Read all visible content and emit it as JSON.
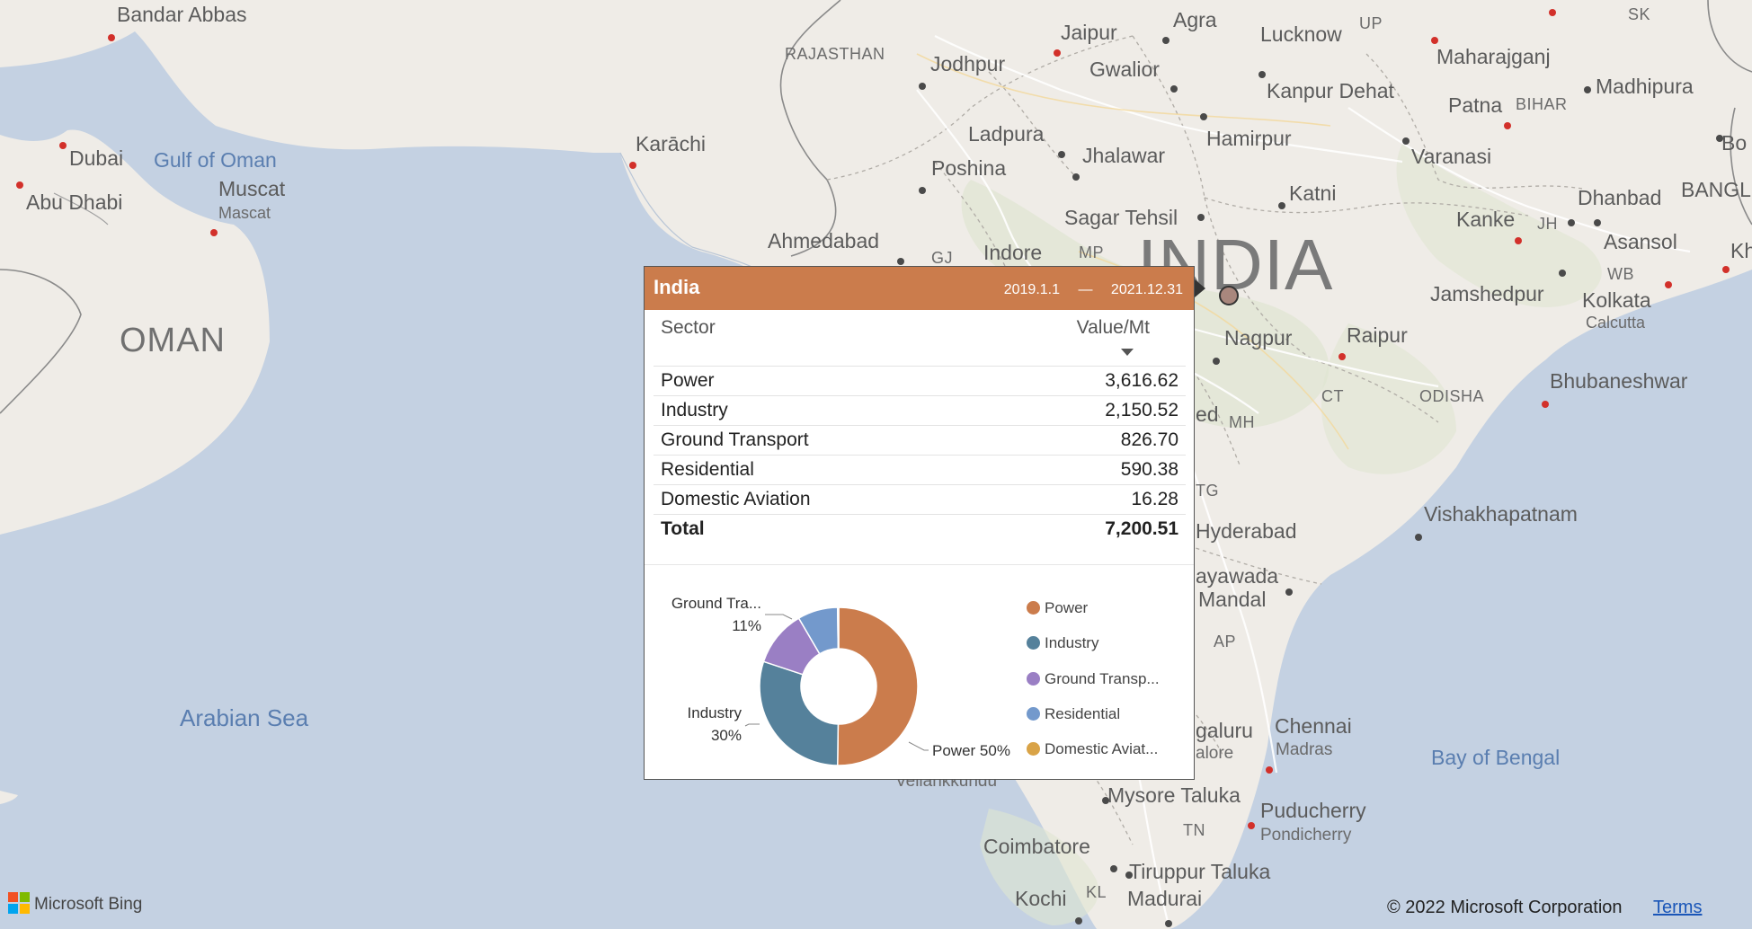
{
  "map": {
    "labels": {
      "bandar_abbas": "Bandar Abbas",
      "dubai": "Dubai",
      "gulf_of_oman": "Gulf of Oman",
      "muscat": "Muscat",
      "mascat": "Mascat",
      "abu_dhabi": "Abu Dhabi",
      "oman": "OMAN",
      "karachi": "Karāchi",
      "arabian_sea": "Arabian Sea",
      "rajasthan": "RAJASTHAN",
      "jaipur": "Jaipur",
      "agra": "Agra",
      "lucknow": "Lucknow",
      "up": "UP",
      "sk": "SK",
      "jodhpur": "Jodhpur",
      "gwalior": "Gwalior",
      "maharajganj": "Maharajganj",
      "kanpur_dehat": "Kanpur Dehat",
      "madhipura": "Madhipura",
      "patna": "Patna",
      "bihar": "BIHAR",
      "ladpura": "Ladpura",
      "hamirpur": "Hamirpur",
      "jhalawar": "Jhalawar",
      "poshina": "Poshina",
      "varanasi": "Varanasi",
      "bo": "Bo",
      "katni": "Katni",
      "dhanbad": "Dhanbad",
      "bangl": "BANGL",
      "ahmedabad": "Ahmedabad",
      "sagar_tehsil": "Sagar Tehsil",
      "kanke": "Kanke",
      "jh": "JH",
      "asansol": "Asansol",
      "kh": "Kh",
      "gj": "GJ",
      "indore": "Indore",
      "mp": "MP",
      "india": "INDIA",
      "wb": "WB",
      "jamshedpur": "Jamshedpur",
      "kolkata": "Kolkata",
      "calcutta": "Calcutta",
      "nagpur": "Nagpur",
      "raipur": "Raipur",
      "ct": "CT",
      "odisha": "ODISHA",
      "bhubaneshwar": "Bhubaneshwar",
      "ed": "ed",
      "mh": "MH",
      "tg": "TG",
      "hyderabad": "Hyderabad",
      "vishakhapatnam": "Vishakhapatnam",
      "ayawada": "ayawada",
      "mandal": "Mandal",
      "ap": "AP",
      "chennai": "Chennai",
      "madras": "Madras",
      "galuru": "galuru",
      "alore": "alore",
      "bay_of_bengal": "Bay of Bengal",
      "vellankkundu": "Vellankkundu",
      "mysore_taluka": "Mysore Taluka",
      "tn": "TN",
      "puducherry": "Puducherry",
      "pondicherry": "Pondicherry",
      "coimbatore": "Coimbatore",
      "tiruppur_taluka": "Tiruppur Taluka",
      "kochi": "Kochi",
      "kl": "KL",
      "madurai": "Madurai"
    }
  },
  "tooltip": {
    "title": "India",
    "date_start": "2019.1.1",
    "date_sep": "—",
    "date_end": "2021.12.31",
    "col_sector": "Sector",
    "col_value": "Value/Mt",
    "rows": [
      {
        "sector": "Power",
        "value": "3,616.62"
      },
      {
        "sector": "Industry",
        "value": "2,150.52"
      },
      {
        "sector": "Ground Transport",
        "value": "826.70"
      },
      {
        "sector": "Residential",
        "value": "590.38"
      },
      {
        "sector": "Domestic Aviation",
        "value": "16.28"
      }
    ],
    "total_label": "Total",
    "total_value": "7,200.51"
  },
  "chart_data": {
    "type": "pie",
    "categories": [
      "Power",
      "Industry",
      "Ground Transport",
      "Residential",
      "Domestic Aviation"
    ],
    "values": [
      3616.62,
      2150.52,
      826.7,
      590.38,
      16.28
    ],
    "colors": [
      "#cb7c4c",
      "#55819b",
      "#9a7fc4",
      "#7399cc",
      "#d9a347"
    ],
    "data_labels": [
      {
        "name": "Power",
        "text": "Power 50%"
      },
      {
        "name": "Industry",
        "text": "Industry",
        "pct": "30%"
      },
      {
        "name": "Ground Transport",
        "text": "Ground Tra...",
        "pct": "11%"
      }
    ],
    "legend": [
      "Power",
      "Industry",
      "Ground Transp...",
      "Residential",
      "Domestic Aviat..."
    ],
    "legend_position": "right",
    "donut": true
  },
  "footer": {
    "bing": "Microsoft Bing",
    "copyright": "© 2022 Microsoft Corporation",
    "terms": "Terms"
  }
}
